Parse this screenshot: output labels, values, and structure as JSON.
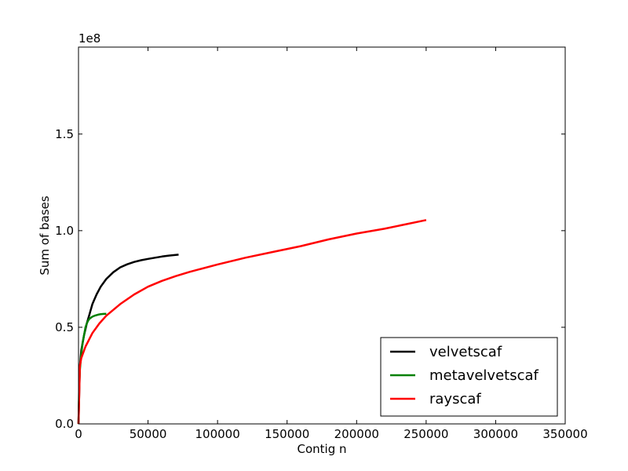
{
  "chart_data": {
    "type": "line",
    "title": "",
    "xlabel": "Contig n",
    "ylabel": "Sum of bases",
    "y_offset_label": "1e8",
    "xlim": [
      0,
      350000
    ],
    "ylim": [
      0,
      1.95
    ],
    "x_ticks": [
      0,
      50000,
      100000,
      150000,
      200000,
      250000,
      300000,
      350000
    ],
    "x_tick_labels": [
      "0",
      "50000",
      "100000",
      "150000",
      "200000",
      "250000",
      "300000",
      "350000"
    ],
    "y_ticks": [
      0.0,
      0.5,
      1.0,
      1.5
    ],
    "y_tick_labels": [
      "0.0",
      "0.5",
      "1.0",
      "1.5"
    ],
    "grid": false,
    "legend_position": "lower-right",
    "series": [
      {
        "name": "velvetscaf",
        "color": "#000000",
        "x": [
          0,
          1000,
          2000,
          4000,
          6000,
          8000,
          10000,
          13000,
          16000,
          20000,
          25000,
          30000,
          35000,
          40000,
          45000,
          50000,
          55000,
          60000,
          65000,
          72000
        ],
        "y": [
          0,
          0.3,
          0.38,
          0.46,
          0.52,
          0.57,
          0.62,
          0.67,
          0.71,
          0.75,
          0.785,
          0.81,
          0.826,
          0.838,
          0.847,
          0.854,
          0.86,
          0.866,
          0.871,
          0.876
        ]
      },
      {
        "name": "metavelvetscaf",
        "color": "#008000",
        "x": [
          0,
          500,
          1000,
          2000,
          3000,
          4000,
          5000,
          6000,
          7000,
          8000,
          10000,
          12000,
          14000,
          16000,
          18000,
          20000
        ],
        "y": [
          0,
          0.2,
          0.28,
          0.36,
          0.42,
          0.46,
          0.5,
          0.52,
          0.535,
          0.545,
          0.555,
          0.561,
          0.565,
          0.568,
          0.569,
          0.57
        ]
      },
      {
        "name": "rayscaf",
        "color": "#ff0000",
        "x": [
          0,
          1000,
          2000,
          5000,
          10000,
          15000,
          20000,
          30000,
          40000,
          50000,
          60000,
          70000,
          80000,
          100000,
          120000,
          140000,
          160000,
          180000,
          200000,
          220000,
          250000
        ],
        "y": [
          0,
          0.3,
          0.34,
          0.4,
          0.47,
          0.52,
          0.56,
          0.62,
          0.67,
          0.71,
          0.74,
          0.765,
          0.787,
          0.825,
          0.86,
          0.89,
          0.92,
          0.955,
          0.985,
          1.01,
          1.055
        ]
      }
    ]
  }
}
